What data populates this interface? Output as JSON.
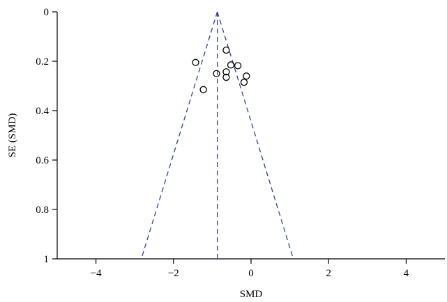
{
  "chart_data": {
    "type": "scatter",
    "title": "",
    "xlabel": "SMD",
    "ylabel": "SE (SMD)",
    "xlim": [
      -5,
      5
    ],
    "ylim": [
      0,
      1
    ],
    "y_inverted": true,
    "xticks": [
      -4,
      -2,
      0,
      2,
      4
    ],
    "xtick_labels": [
      "−4",
      "−2",
      "0",
      "2",
      "4"
    ],
    "yticks": [
      0,
      0.2,
      0.4,
      0.6,
      0.8,
      1
    ],
    "ytick_labels": [
      "0",
      "0.2",
      "0.4",
      "0.6",
      "0.8",
      "1"
    ],
    "grid": false,
    "pooled_estimate": -0.87,
    "funnel_lines": [
      {
        "name": "left-limit",
        "points": [
          [
            -0.87,
            0
          ],
          [
            -2.83,
            1
          ]
        ]
      },
      {
        "name": "right-limit",
        "points": [
          [
            -0.87,
            0
          ],
          [
            1.09,
            1
          ]
        ]
      },
      {
        "name": "pooled-estimate",
        "points": [
          [
            -0.87,
            0
          ],
          [
            -0.87,
            1
          ]
        ]
      }
    ],
    "points": [
      {
        "x": -0.64,
        "y": 0.155
      },
      {
        "x": -1.43,
        "y": 0.205
      },
      {
        "x": -0.52,
        "y": 0.215
      },
      {
        "x": -0.34,
        "y": 0.218
      },
      {
        "x": -0.64,
        "y": 0.243
      },
      {
        "x": -0.89,
        "y": 0.25
      },
      {
        "x": -0.12,
        "y": 0.26
      },
      {
        "x": -0.64,
        "y": 0.265
      },
      {
        "x": -0.18,
        "y": 0.285
      },
      {
        "x": -1.23,
        "y": 0.315
      }
    ],
    "colors": {
      "funnel": "#2a3d9c",
      "points": "#000000",
      "axes": "#000000"
    }
  }
}
